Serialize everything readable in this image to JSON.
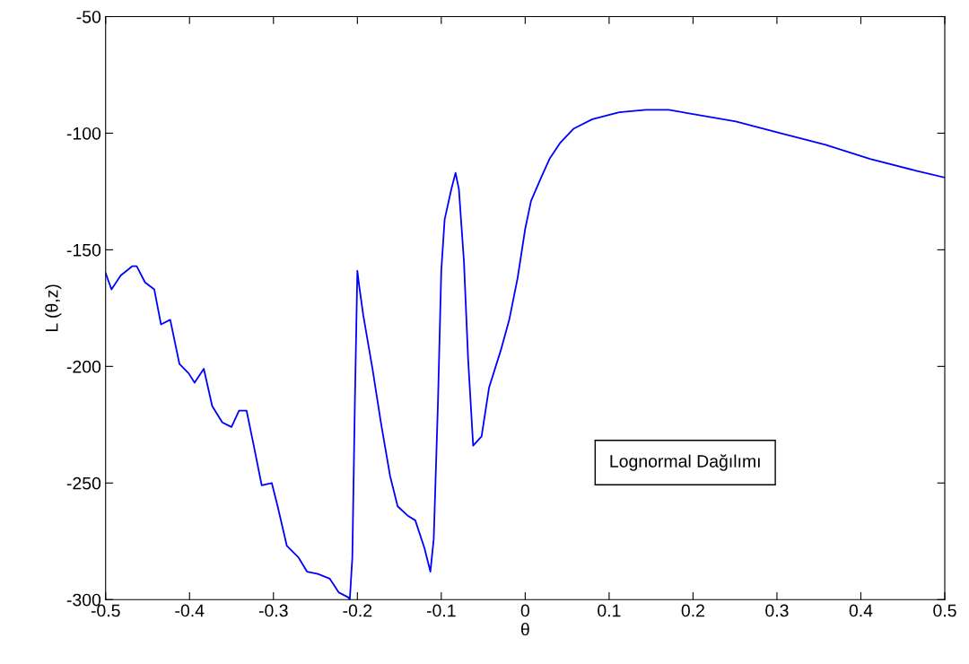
{
  "chart_data": {
    "type": "line",
    "xlabel": "θ",
    "ylabel": "L (θ,z)",
    "annotations": [
      "Lognormal Dağılımı"
    ],
    "xlim": [
      -0.5,
      0.5
    ],
    "xticks": [
      -0.5,
      -0.4,
      -0.3,
      -0.2,
      -0.1,
      0,
      0.1,
      0.2,
      0.3,
      0.4,
      0.5
    ],
    "ylim": [
      -300,
      -50
    ],
    "yticks": [
      -300,
      -250,
      -200,
      -150,
      -100,
      -50
    ],
    "grid": false,
    "marker": "none",
    "line_style": "solid",
    "series": [
      {
        "color": "#0000ff",
        "x": [
          -0.5,
          -0.493,
          -0.482,
          -0.468,
          -0.463,
          -0.453,
          -0.442,
          -0.434,
          -0.423,
          -0.412,
          -0.401,
          -0.394,
          -0.383,
          -0.373,
          -0.361,
          -0.35,
          -0.341,
          -0.332,
          -0.324,
          -0.314,
          -0.302,
          -0.295,
          -0.284,
          -0.27,
          -0.26,
          -0.247,
          -0.233,
          -0.222,
          -0.211,
          -0.209,
          -0.206,
          -0.203,
          -0.2,
          -0.198,
          -0.193,
          -0.182,
          -0.172,
          -0.161,
          -0.152,
          -0.14,
          -0.131,
          -0.12,
          -0.113,
          -0.109,
          -0.104,
          -0.1,
          -0.096,
          -0.088,
          -0.083,
          -0.079,
          -0.073,
          -0.068,
          -0.062,
          -0.052,
          -0.043,
          -0.029,
          -0.019,
          -0.009,
          0.0,
          0.007,
          0.019,
          0.029,
          0.042,
          0.058,
          0.08,
          0.112,
          0.144,
          0.171,
          0.203,
          0.251,
          0.304,
          0.358,
          0.411,
          0.465,
          0.5
        ],
        "values": [
          -160,
          -167,
          -161,
          -157,
          -157,
          -164,
          -167,
          -182,
          -180,
          -199,
          -203,
          -207,
          -201,
          -217,
          -224,
          -226,
          -219,
          -219,
          -233,
          -251,
          -250,
          -260,
          -277,
          -282,
          -288,
          -289,
          -291,
          -297,
          -299,
          -300,
          -282,
          -216,
          -159,
          -165,
          -178,
          -201,
          -224,
          -247,
          -260,
          -264,
          -266,
          -278,
          -288,
          -274,
          -216,
          -159,
          -137,
          -124,
          -117,
          -124,
          -155,
          -197,
          -234,
          -230,
          -209,
          -193,
          -180,
          -162,
          -141,
          -129,
          -119,
          -111,
          -104,
          -98,
          -94,
          -91,
          -90,
          -90,
          -92,
          -95,
          -100,
          -105,
          -111,
          -116,
          -119
        ]
      }
    ]
  }
}
